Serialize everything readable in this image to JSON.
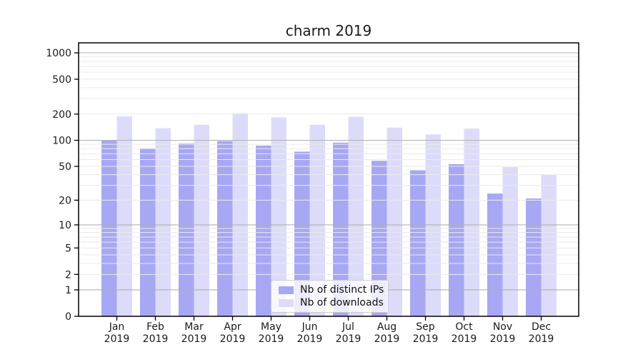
{
  "figure": {
    "title": "charm 2019"
  },
  "chart_data": {
    "type": "bar",
    "title": "charm 2019",
    "subtitle": "",
    "xlabel": "",
    "ylabel": "",
    "categories": [
      "Jan 2019",
      "Feb 2019",
      "Mar 2019",
      "Apr 2019",
      "May 2019",
      "Jun 2019",
      "Jul 2019",
      "Aug 2019",
      "Sep 2019",
      "Oct 2019",
      "Nov 2019",
      "Dec 2019"
    ],
    "series": [
      {
        "name": "Nb of distinct IPs",
        "color": "#a7a7f4",
        "values": [
          100,
          81,
          92,
          98,
          87,
          74,
          94,
          58,
          45,
          53,
          24,
          21
        ]
      },
      {
        "name": "Nb of downloads",
        "color": "#dcdcfa",
        "values": [
          189,
          138,
          151,
          204,
          183,
          151,
          186,
          140,
          117,
          136,
          49,
          40
        ]
      }
    ],
    "yscale": "log1p",
    "ylim": [
      0,
      1300
    ],
    "yticks": [
      0,
      1,
      2,
      5,
      10,
      20,
      50,
      100,
      200,
      500,
      1000
    ],
    "grid": {
      "visible": true,
      "drawn_over_bars": true,
      "major_at": [
        1,
        10,
        100,
        1000
      ],
      "minor_multiples": [
        2,
        3,
        4,
        5,
        6,
        7,
        8,
        9
      ],
      "minor_decades": [
        1,
        10,
        100
      ],
      "major_color": "#b0b0b0",
      "minor_color": "#eaeaea"
    },
    "legend": {
      "position": "lower center",
      "entries": [
        "Nb of distinct IPs",
        "Nb of downloads"
      ]
    },
    "axis_color": "#000000",
    "text_color": "#1a1a1a"
  }
}
